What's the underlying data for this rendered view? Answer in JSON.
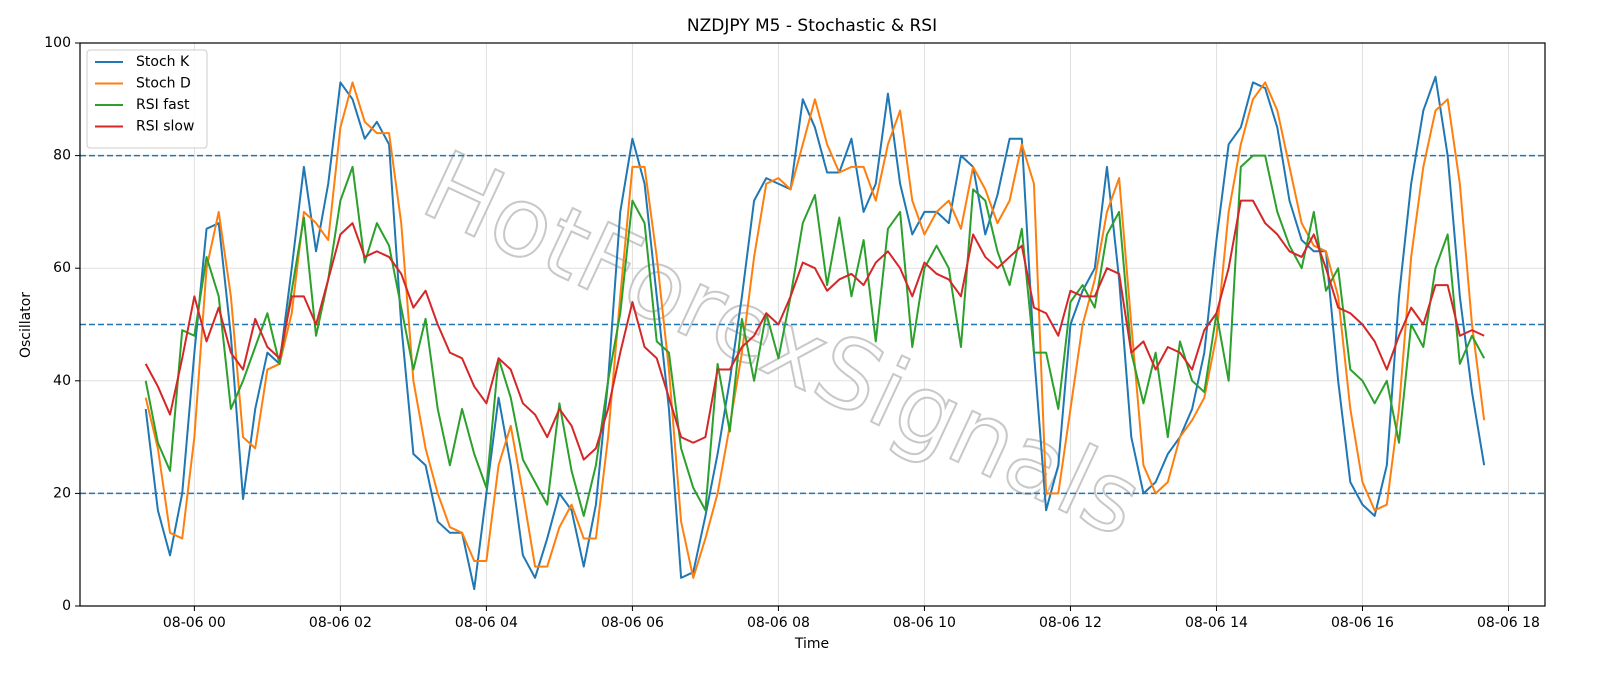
{
  "chart_data": {
    "type": "line",
    "title": "NZDJPY M5 - Stochastic & RSI",
    "xlabel": "Time",
    "ylabel": "Oscillator",
    "watermark": "HotForexSignals",
    "x": [
      -40,
      -30,
      -20,
      -10,
      0,
      10,
      20,
      30,
      40,
      50,
      60,
      70,
      80,
      90,
      100,
      110,
      120,
      130,
      140,
      150,
      160,
      170,
      180,
      190,
      200,
      210,
      220,
      230,
      240,
      250,
      260,
      270,
      280,
      290,
      300,
      310,
      320,
      330,
      340,
      350,
      360,
      370,
      380,
      390,
      400,
      410,
      420,
      430,
      440,
      450,
      460,
      470,
      480,
      490,
      500,
      510,
      520,
      530,
      540,
      550,
      560,
      570,
      580,
      590,
      600,
      610,
      620,
      630,
      640,
      650,
      660,
      670,
      680,
      690,
      700,
      710,
      720,
      730,
      740,
      750,
      760,
      770,
      780,
      790,
      800,
      810,
      820,
      830,
      840,
      850,
      860,
      870,
      880,
      890,
      900,
      910,
      920,
      930,
      940,
      950,
      960,
      970,
      980,
      990,
      1000,
      1010,
      1020,
      1030,
      1040,
      1050,
      1060
    ],
    "series": [
      {
        "name": "Stoch K",
        "color": "#1f77b4",
        "values": [
          35,
          17,
          9,
          20,
          45,
          67,
          68,
          48,
          19,
          35,
          45,
          43,
          60,
          78,
          63,
          75,
          93,
          90,
          83,
          86,
          82,
          50,
          27,
          25,
          15,
          13,
          13,
          3,
          20,
          37,
          25,
          9,
          5,
          12,
          20,
          17,
          7,
          18,
          40,
          70,
          83,
          75,
          55,
          35,
          5,
          6,
          16,
          27,
          40,
          55,
          72,
          76,
          75,
          74,
          90,
          85,
          77,
          77,
          83,
          70,
          75,
          91,
          75,
          66,
          70,
          70,
          68,
          80,
          78,
          66,
          73,
          83,
          83,
          45,
          17,
          25,
          50,
          56,
          60,
          78,
          58,
          30,
          20,
          22,
          27,
          30,
          35,
          45,
          65,
          82,
          85,
          93,
          92,
          85,
          72,
          65,
          63,
          63,
          40,
          22,
          18,
          16,
          25,
          55,
          75,
          88,
          94,
          80,
          55,
          38,
          25
        ]
      },
      {
        "name": "Stoch D",
        "color": "#ff7f0e",
        "values": [
          37,
          28,
          13,
          12,
          30,
          60,
          70,
          55,
          30,
          28,
          42,
          43,
          52,
          70,
          68,
          65,
          85,
          93,
          86,
          84,
          84,
          68,
          40,
          28,
          20,
          14,
          13,
          8,
          8,
          25,
          32,
          20,
          7,
          7,
          14,
          18,
          12,
          12,
          30,
          55,
          78,
          78,
          62,
          42,
          15,
          5,
          12,
          20,
          32,
          45,
          62,
          75,
          76,
          74,
          82,
          90,
          82,
          77,
          78,
          78,
          72,
          82,
          88,
          72,
          66,
          70,
          72,
          67,
          78,
          74,
          68,
          72,
          82,
          75,
          20,
          20,
          35,
          50,
          58,
          70,
          76,
          50,
          25,
          20,
          22,
          30,
          33,
          37,
          48,
          70,
          82,
          90,
          93,
          88,
          78,
          68,
          64,
          63,
          55,
          35,
          22,
          17,
          18,
          35,
          62,
          78,
          88,
          90,
          75,
          50,
          33
        ]
      },
      {
        "name": "RSI fast",
        "color": "#2ca02c",
        "values": [
          40,
          29,
          24,
          49,
          48,
          62,
          55,
          35,
          40,
          46,
          52,
          43,
          56,
          69,
          48,
          58,
          72,
          78,
          61,
          68,
          64,
          53,
          42,
          51,
          35,
          25,
          35,
          27,
          21,
          44,
          37,
          26,
          22,
          18,
          36,
          24,
          16,
          25,
          40,
          52,
          72,
          68,
          47,
          45,
          28,
          21,
          17,
          43,
          31,
          51,
          40,
          52,
          44,
          55,
          68,
          73,
          57,
          69,
          55,
          65,
          47,
          67,
          70,
          46,
          60,
          64,
          60,
          46,
          74,
          72,
          63,
          57,
          67,
          45,
          45,
          35,
          54,
          57,
          53,
          66,
          70,
          45,
          36,
          45,
          30,
          47,
          40,
          38,
          52,
          40,
          78,
          80,
          80,
          70,
          64,
          60,
          70,
          56,
          60,
          42,
          40,
          36,
          40,
          29,
          50,
          46,
          60,
          66,
          43,
          48,
          44
        ]
      },
      {
        "name": "RSI slow",
        "color": "#d62728",
        "values": [
          43,
          39,
          34,
          44,
          55,
          47,
          53,
          45,
          42,
          51,
          46,
          44,
          55,
          55,
          50,
          58,
          66,
          68,
          62,
          63,
          62,
          59,
          53,
          56,
          50,
          45,
          44,
          39,
          36,
          44,
          42,
          36,
          34,
          30,
          35,
          32,
          26,
          28,
          35,
          45,
          54,
          46,
          44,
          37,
          30,
          29,
          30,
          42,
          42,
          46,
          48,
          52,
          50,
          55,
          61,
          60,
          56,
          58,
          59,
          57,
          61,
          63,
          60,
          55,
          61,
          59,
          58,
          55,
          66,
          62,
          60,
          62,
          64,
          53,
          52,
          48,
          56,
          55,
          55,
          60,
          59,
          45,
          47,
          42,
          46,
          45,
          42,
          49,
          52,
          60,
          72,
          72,
          68,
          66,
          63,
          62,
          66,
          60,
          53,
          52,
          50,
          47,
          42,
          48,
          53,
          50,
          57,
          57,
          48,
          49,
          48
        ]
      }
    ],
    "xlim": [
      -94,
      1110
    ],
    "xticks": [
      {
        "value": 0,
        "label": "08-06 00"
      },
      {
        "value": 120,
        "label": "08-06 02"
      },
      {
        "value": 240,
        "label": "08-06 04"
      },
      {
        "value": 360,
        "label": "08-06 06"
      },
      {
        "value": 480,
        "label": "08-06 08"
      },
      {
        "value": 600,
        "label": "08-06 10"
      },
      {
        "value": 720,
        "label": "08-06 12"
      },
      {
        "value": 840,
        "label": "08-06 14"
      },
      {
        "value": 960,
        "label": "08-06 16"
      },
      {
        "value": 1080,
        "label": "08-06 18"
      }
    ],
    "ylim": [
      0,
      100
    ],
    "yticks": [
      0,
      20,
      40,
      60,
      80,
      100
    ],
    "hlines": [
      20,
      50,
      80
    ],
    "hline_color": "#1f77b4",
    "grid": true,
    "legend": "upper left"
  }
}
